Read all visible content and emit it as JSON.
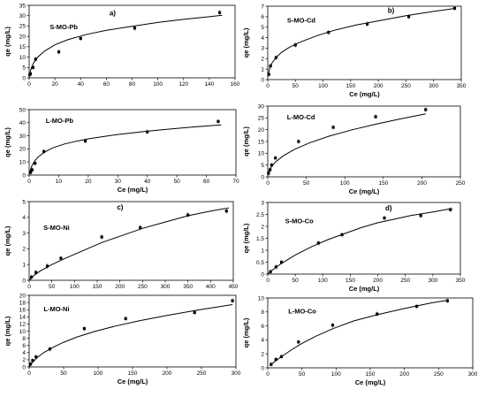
{
  "chart_data": [
    {
      "id": "S-MO-Pb",
      "type": "scatter",
      "panel_letter": "a)",
      "label": "S-MO-Pb",
      "xlabel": "",
      "ylabel": "qe (mg/L)",
      "xlim": [
        0,
        160
      ],
      "ylim": [
        0,
        35
      ],
      "xticks": [
        0,
        20,
        40,
        60,
        80,
        100,
        120,
        140,
        160
      ],
      "yticks": [
        0,
        5,
        10,
        15,
        20,
        25,
        30,
        35
      ],
      "x": [
        0.5,
        1,
        3,
        5,
        23,
        40,
        82,
        148
      ],
      "y": [
        1.5,
        2,
        5,
        9,
        12.5,
        19,
        24,
        31.5
      ],
      "fit_x": [
        0.2,
        1,
        2,
        4,
        7,
        12,
        20,
        30,
        45,
        60,
        80,
        100,
        120,
        140,
        150
      ],
      "fit_y": [
        0.8,
        3.3,
        5.2,
        7.8,
        10.2,
        12.9,
        15.9,
        18.4,
        21.0,
        22.9,
        24.9,
        26.7,
        28.2,
        29.5,
        30.2
      ]
    },
    {
      "id": "S-MO-Cd",
      "type": "scatter",
      "panel_letter": "b)",
      "label": "S-MO-Cd",
      "xlabel": "Ce (mg/L)",
      "ylabel": "qe (mg/L)",
      "xlim": [
        0,
        350
      ],
      "ylim": [
        0,
        7
      ],
      "xticks": [
        0,
        50,
        100,
        150,
        200,
        250,
        300,
        350
      ],
      "yticks": [
        0,
        1,
        2,
        3,
        4,
        5,
        6,
        7
      ],
      "x": [
        2,
        5,
        15,
        50,
        110,
        180,
        255,
        338
      ],
      "y": [
        0.5,
        1.3,
        2.1,
        3.3,
        4.5,
        5.3,
        6.0,
        6.8
      ],
      "fit_x": [
        0.5,
        3,
        8,
        15,
        25,
        40,
        60,
        90,
        120,
        160,
        200,
        250,
        300,
        340
      ],
      "fit_y": [
        0.4,
        1.0,
        1.6,
        2.1,
        2.6,
        3.1,
        3.6,
        4.2,
        4.7,
        5.2,
        5.6,
        6.1,
        6.5,
        6.8
      ]
    },
    {
      "id": "L-MO-Pb",
      "type": "scatter",
      "label": "L-MO-Pb",
      "xlabel": "Ce (mg/L)",
      "ylabel": "qe (mg/L)",
      "xlim": [
        0,
        70
      ],
      "ylim": [
        0,
        50
      ],
      "xticks": [
        0,
        10,
        20,
        30,
        40,
        50,
        60,
        70
      ],
      "yticks": [
        0,
        10,
        20,
        30,
        40,
        50
      ],
      "x": [
        0.5,
        1,
        2,
        5,
        19,
        40,
        64
      ],
      "y": [
        2,
        4,
        9,
        18,
        26,
        33,
        41
      ],
      "fit_x": [
        0.1,
        0.5,
        1,
        2,
        3,
        5,
        8,
        12,
        16,
        20,
        25,
        30,
        35,
        40,
        45,
        50,
        55,
        60,
        65
      ],
      "fit_y": [
        1.4,
        4.6,
        7.4,
        11.1,
        13.7,
        17.3,
        20.8,
        23.8,
        25.9,
        27.7,
        29.4,
        31.0,
        32.3,
        33.5,
        34.6,
        35.6,
        36.6,
        37.5,
        38.3
      ]
    },
    {
      "id": "L-MO-Cd",
      "type": "scatter",
      "label": "L-MO-Cd",
      "xlabel": "Ce (mg/L)",
      "ylabel": "qe (mg/L)",
      "xlim": [
        0,
        250
      ],
      "ylim": [
        0,
        30
      ],
      "xticks": [
        0,
        50,
        100,
        150,
        200,
        250
      ],
      "yticks": [
        0,
        5,
        10,
        15,
        20,
        25,
        30
      ],
      "x": [
        1,
        3,
        5,
        10,
        40,
        85,
        140,
        205
      ],
      "y": [
        1.5,
        3,
        5,
        8,
        15,
        21,
        25.5,
        28.5
      ],
      "fit_x": [
        0.5,
        2,
        5,
        10,
        20,
        35,
        55,
        80,
        110,
        140,
        170,
        205
      ],
      "fit_y": [
        1.2,
        2.6,
        4.4,
        6.3,
        8.9,
        11.7,
        14.5,
        17.3,
        20.0,
        22.3,
        24.4,
        26.7
      ]
    },
    {
      "id": "S-MO-Ni",
      "type": "scatter",
      "panel_letter": "c)",
      "label": "S-MO-Ni",
      "xlabel": "",
      "ylabel": "qe (mg/L)",
      "xlim": [
        0,
        450
      ],
      "ylim": [
        0,
        5
      ],
      "xticks": [
        0,
        50,
        100,
        150,
        200,
        250,
        300,
        350,
        400,
        450
      ],
      "yticks": [
        0,
        1,
        2,
        3,
        4,
        5
      ],
      "x": [
        5,
        15,
        40,
        70,
        160,
        245,
        350,
        435
      ],
      "y": [
        0.2,
        0.5,
        0.9,
        1.4,
        2.75,
        3.35,
        4.15,
        4.4
      ],
      "fit_x": [
        0,
        10,
        25,
        50,
        80,
        120,
        160,
        200,
        250,
        300,
        350,
        400,
        440
      ],
      "fit_y": [
        0.0,
        0.3,
        0.6,
        1.0,
        1.4,
        1.9,
        2.4,
        2.8,
        3.3,
        3.7,
        4.1,
        4.4,
        4.6
      ]
    },
    {
      "id": "S-MO-Co",
      "type": "scatter",
      "panel_letter": "d)",
      "label": "S-MO-Co",
      "xlabel": "Ce (mg/L)",
      "ylabel": "qe (mg/L)",
      "xlim": [
        0,
        350
      ],
      "ylim": [
        0,
        3
      ],
      "xticks": [
        0,
        50,
        100,
        150,
        200,
        250,
        300,
        350
      ],
      "yticks": [
        0,
        0.5,
        1,
        1.5,
        2,
        2.5,
        3
      ],
      "x": [
        5,
        15,
        25,
        92,
        135,
        212,
        278,
        332
      ],
      "y": [
        0.1,
        0.3,
        0.5,
        1.3,
        1.65,
        2.35,
        2.45,
        2.7
      ],
      "fit_x": [
        0,
        10,
        25,
        50,
        80,
        110,
        140,
        170,
        200,
        230,
        260,
        300,
        335
      ],
      "fit_y": [
        0.0,
        0.2,
        0.45,
        0.8,
        1.15,
        1.45,
        1.7,
        1.95,
        2.15,
        2.3,
        2.45,
        2.6,
        2.75
      ]
    },
    {
      "id": "L-MO-Ni",
      "type": "scatter",
      "label": "L-MO-Ni",
      "xlabel": "Ce (mg/L)",
      "ylabel": "qe (mg/L)",
      "xlim": [
        0,
        300
      ],
      "ylim": [
        0,
        20
      ],
      "xticks": [
        0,
        50,
        100,
        150,
        200,
        250,
        300
      ],
      "yticks": [
        0,
        2,
        4,
        6,
        8,
        10,
        12,
        14,
        16,
        18,
        20
      ],
      "x": [
        2,
        5,
        10,
        30,
        80,
        140,
        240,
        295
      ],
      "y": [
        0.8,
        1.8,
        2.8,
        5,
        10.7,
        13.5,
        15.2,
        18.5
      ],
      "fit_x": [
        0,
        5,
        12,
        22,
        35,
        50,
        70,
        95,
        125,
        160,
        200,
        245,
        295
      ],
      "fit_y": [
        0.0,
        1.3,
        2.7,
        4.1,
        5.5,
        6.9,
        8.4,
        9.9,
        11.4,
        12.9,
        14.4,
        15.9,
        17.4
      ]
    },
    {
      "id": "L-MO-Co",
      "type": "scatter",
      "label": "L-MO-Co",
      "xlabel": "Ce (mg/L)",
      "ylabel": "qe (mg/L)",
      "xlim": [
        0,
        300
      ],
      "ylim": [
        0,
        10
      ],
      "xticks": [
        0,
        50,
        100,
        150,
        200,
        250,
        300
      ],
      "yticks": [
        0,
        2,
        4,
        6,
        8,
        10
      ],
      "x": [
        5,
        12,
        20,
        45,
        95,
        160,
        218,
        263
      ],
      "y": [
        0.5,
        1.2,
        1.6,
        3.7,
        6.1,
        7.7,
        8.8,
        9.6
      ],
      "fit_x": [
        3,
        10,
        20,
        35,
        50,
        70,
        95,
        125,
        160,
        200,
        240,
        265
      ],
      "fit_y": [
        0.3,
        0.9,
        1.6,
        2.6,
        3.5,
        4.5,
        5.6,
        6.7,
        7.6,
        8.5,
        9.3,
        9.7
      ]
    }
  ]
}
